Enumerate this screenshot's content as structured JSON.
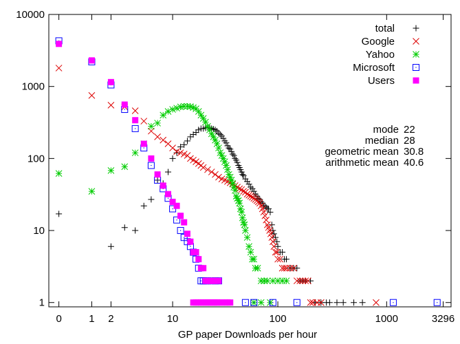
{
  "chart_data": {
    "type": "scatter",
    "xlabel": "GP paper Downloads per hour",
    "ylabel": "",
    "title": "",
    "x_scale": "log1p",
    "y_scale": "log",
    "xlim": [
      0,
      3296
    ],
    "ylim": [
      1,
      10000
    ],
    "x_ticks": [
      {
        "value": 0,
        "label": "0"
      },
      {
        "value": 1,
        "label": "1"
      },
      {
        "value": 2,
        "label": "2"
      },
      {
        "value": 10,
        "label": "10"
      },
      {
        "value": 100,
        "label": "100"
      },
      {
        "value": 1000,
        "label": "1000"
      },
      {
        "value": 3296,
        "label": "3296"
      }
    ],
    "y_ticks": [
      {
        "value": 1,
        "label": "1"
      },
      {
        "value": 10,
        "label": "10"
      },
      {
        "value": 100,
        "label": "100"
      },
      {
        "value": 1000,
        "label": "1000"
      },
      {
        "value": 10000,
        "label": "10000"
      }
    ],
    "legend_position": "top-right",
    "stats_box": [
      {
        "label": "mode",
        "value": "22"
      },
      {
        "label": "median",
        "value": "28"
      },
      {
        "label": "geometric mean",
        "value": "30.8"
      },
      {
        "label": "arithmetic mean",
        "value": "40.6"
      }
    ],
    "series": [
      {
        "name": "total",
        "marker": "plus",
        "color": "#000000",
        "points": [
          [
            0,
            17
          ],
          [
            2,
            6
          ],
          [
            3,
            11
          ],
          [
            4,
            10
          ],
          [
            5,
            22
          ],
          [
            6,
            27
          ],
          [
            7,
            50
          ],
          [
            8,
            45
          ],
          [
            9,
            65
          ],
          [
            10,
            100
          ],
          [
            11,
            120
          ],
          [
            12,
            145
          ],
          [
            13,
            155
          ],
          [
            14,
            175
          ],
          [
            15,
            200
          ],
          [
            16,
            215
          ],
          [
            17,
            230
          ],
          [
            18,
            250
          ],
          [
            19,
            260
          ],
          [
            20,
            260
          ],
          [
            21,
            265
          ],
          [
            22,
            270
          ],
          [
            23,
            265
          ],
          [
            24,
            260
          ],
          [
            25,
            255
          ],
          [
            26,
            250
          ],
          [
            27,
            240
          ],
          [
            28,
            225
          ],
          [
            29,
            215
          ],
          [
            30,
            205
          ],
          [
            31,
            190
          ],
          [
            32,
            175
          ],
          [
            33,
            165
          ],
          [
            34,
            150
          ],
          [
            35,
            140
          ],
          [
            36,
            135
          ],
          [
            37,
            125
          ],
          [
            38,
            115
          ],
          [
            39,
            110
          ],
          [
            40,
            100
          ],
          [
            41,
            95
          ],
          [
            42,
            88
          ],
          [
            43,
            80
          ],
          [
            44,
            75
          ],
          [
            45,
            70
          ],
          [
            46,
            65
          ],
          [
            47,
            60
          ],
          [
            48,
            58
          ],
          [
            50,
            52
          ],
          [
            52,
            48
          ],
          [
            54,
            44
          ],
          [
            56,
            40
          ],
          [
            58,
            38
          ],
          [
            60,
            35
          ],
          [
            62,
            32
          ],
          [
            64,
            30
          ],
          [
            66,
            28
          ],
          [
            68,
            27
          ],
          [
            70,
            25
          ],
          [
            72,
            24
          ],
          [
            74,
            22
          ],
          [
            76,
            22
          ],
          [
            78,
            21
          ],
          [
            80,
            20
          ],
          [
            82,
            20
          ],
          [
            85,
            18
          ],
          [
            88,
            12
          ],
          [
            90,
            10
          ],
          [
            92,
            9
          ],
          [
            95,
            8
          ],
          [
            98,
            7
          ],
          [
            100,
            6
          ],
          [
            105,
            5
          ],
          [
            110,
            5
          ],
          [
            115,
            4
          ],
          [
            120,
            4
          ],
          [
            130,
            3
          ],
          [
            140,
            3
          ],
          [
            150,
            3
          ],
          [
            160,
            2
          ],
          [
            170,
            2
          ],
          [
            180,
            2
          ],
          [
            200,
            2
          ],
          [
            220,
            1
          ],
          [
            250,
            1
          ],
          [
            280,
            1
          ],
          [
            300,
            1
          ],
          [
            350,
            1
          ],
          [
            400,
            1
          ],
          [
            500,
            1
          ],
          [
            600,
            1
          ]
        ]
      },
      {
        "name": "Google",
        "marker": "x",
        "color": "#dd0000",
        "points": [
          [
            0,
            1800
          ],
          [
            1,
            750
          ],
          [
            2,
            550
          ],
          [
            3,
            520
          ],
          [
            4,
            460
          ],
          [
            5,
            330
          ],
          [
            6,
            240
          ],
          [
            7,
            200
          ],
          [
            8,
            180
          ],
          [
            9,
            160
          ],
          [
            10,
            140
          ],
          [
            11,
            125
          ],
          [
            12,
            120
          ],
          [
            13,
            115
          ],
          [
            14,
            110
          ],
          [
            15,
            100
          ],
          [
            16,
            95
          ],
          [
            17,
            90
          ],
          [
            18,
            85
          ],
          [
            19,
            80
          ],
          [
            20,
            75
          ],
          [
            22,
            70
          ],
          [
            24,
            65
          ],
          [
            26,
            60
          ],
          [
            28,
            55
          ],
          [
            30,
            52
          ],
          [
            32,
            50
          ],
          [
            34,
            48
          ],
          [
            36,
            46
          ],
          [
            38,
            44
          ],
          [
            40,
            42
          ],
          [
            42,
            40
          ],
          [
            44,
            38
          ],
          [
            46,
            37
          ],
          [
            48,
            35
          ],
          [
            50,
            34
          ],
          [
            52,
            32
          ],
          [
            54,
            31
          ],
          [
            56,
            30
          ],
          [
            58,
            29
          ],
          [
            60,
            28
          ],
          [
            62,
            27
          ],
          [
            64,
            26
          ],
          [
            66,
            25
          ],
          [
            68,
            24
          ],
          [
            70,
            22
          ],
          [
            72,
            20
          ],
          [
            74,
            18
          ],
          [
            76,
            16
          ],
          [
            78,
            14
          ],
          [
            80,
            12
          ],
          [
            82,
            11
          ],
          [
            84,
            10
          ],
          [
            86,
            9
          ],
          [
            88,
            8
          ],
          [
            90,
            7
          ],
          [
            92,
            6
          ],
          [
            95,
            5
          ],
          [
            98,
            5
          ],
          [
            100,
            4
          ],
          [
            105,
            4
          ],
          [
            110,
            3
          ],
          [
            115,
            3
          ],
          [
            120,
            3
          ],
          [
            130,
            3
          ],
          [
            140,
            3
          ],
          [
            150,
            2
          ],
          [
            160,
            2
          ],
          [
            170,
            2
          ],
          [
            180,
            2
          ],
          [
            190,
            2
          ],
          [
            200,
            1
          ],
          [
            210,
            1
          ],
          [
            230,
            1
          ],
          [
            250,
            1
          ],
          [
            800,
            1
          ]
        ]
      },
      {
        "name": "Yahoo",
        "marker": "star",
        "color": "#00cc00",
        "points": [
          [
            0,
            62
          ],
          [
            1,
            35
          ],
          [
            2,
            68
          ],
          [
            3,
            77
          ],
          [
            4,
            120
          ],
          [
            5,
            160
          ],
          [
            6,
            280
          ],
          [
            7,
            310
          ],
          [
            8,
            400
          ],
          [
            9,
            450
          ],
          [
            10,
            480
          ],
          [
            11,
            500
          ],
          [
            12,
            520
          ],
          [
            13,
            530
          ],
          [
            14,
            530
          ],
          [
            15,
            525
          ],
          [
            16,
            510
          ],
          [
            17,
            490
          ],
          [
            18,
            450
          ],
          [
            19,
            400
          ],
          [
            20,
            360
          ],
          [
            21,
            320
          ],
          [
            22,
            280
          ],
          [
            23,
            250
          ],
          [
            24,
            220
          ],
          [
            25,
            200
          ],
          [
            26,
            180
          ],
          [
            27,
            160
          ],
          [
            28,
            140
          ],
          [
            29,
            120
          ],
          [
            30,
            110
          ],
          [
            31,
            100
          ],
          [
            32,
            90
          ],
          [
            33,
            80
          ],
          [
            34,
            70
          ],
          [
            35,
            60
          ],
          [
            36,
            55
          ],
          [
            37,
            50
          ],
          [
            38,
            45
          ],
          [
            39,
            40
          ],
          [
            40,
            36
          ],
          [
            41,
            30
          ],
          [
            42,
            28
          ],
          [
            43,
            26
          ],
          [
            44,
            24
          ],
          [
            45,
            20
          ],
          [
            46,
            18
          ],
          [
            47,
            15
          ],
          [
            48,
            13
          ],
          [
            49,
            12
          ],
          [
            50,
            10
          ],
          [
            52,
            8
          ],
          [
            54,
            6
          ],
          [
            56,
            5
          ],
          [
            58,
            4
          ],
          [
            60,
            4
          ],
          [
            62,
            3
          ],
          [
            65,
            3
          ],
          [
            70,
            2
          ],
          [
            75,
            2
          ],
          [
            80,
            2
          ],
          [
            90,
            2
          ],
          [
            100,
            2
          ],
          [
            110,
            2
          ],
          [
            120,
            2
          ],
          [
            60,
            1
          ],
          [
            70,
            1
          ],
          [
            85,
            1
          ]
        ]
      },
      {
        "name": "Microsoft",
        "marker": "box",
        "color": "#0000ff",
        "points": [
          [
            0,
            4300
          ],
          [
            1,
            2200
          ],
          [
            2,
            1050
          ],
          [
            3,
            480
          ],
          [
            4,
            260
          ],
          [
            5,
            140
          ],
          [
            6,
            80
          ],
          [
            7,
            50
          ],
          [
            8,
            38
          ],
          [
            9,
            28
          ],
          [
            10,
            20
          ],
          [
            11,
            14
          ],
          [
            12,
            10
          ],
          [
            13,
            8
          ],
          [
            14,
            7
          ],
          [
            15,
            6
          ],
          [
            16,
            5
          ],
          [
            17,
            4
          ],
          [
            18,
            3
          ],
          [
            19,
            2
          ],
          [
            20,
            2
          ],
          [
            21,
            2
          ],
          [
            22,
            2
          ],
          [
            24,
            2
          ],
          [
            26,
            2
          ],
          [
            28,
            2
          ],
          [
            50,
            1
          ],
          [
            60,
            1
          ],
          [
            90,
            1
          ],
          [
            150,
            1
          ],
          [
            1150,
            1
          ],
          [
            2900,
            1
          ]
        ]
      },
      {
        "name": "Users",
        "marker": "filled_box",
        "color": "#ff00ff",
        "points": [
          [
            0,
            3900
          ],
          [
            1,
            2300
          ],
          [
            2,
            1150
          ],
          [
            3,
            560
          ],
          [
            4,
            340
          ],
          [
            5,
            160
          ],
          [
            6,
            100
          ],
          [
            7,
            60
          ],
          [
            8,
            42
          ],
          [
            9,
            32
          ],
          [
            10,
            25
          ],
          [
            11,
            22
          ],
          [
            12,
            16
          ],
          [
            13,
            13
          ],
          [
            14,
            9
          ],
          [
            15,
            7
          ],
          [
            16,
            5
          ],
          [
            17,
            5
          ],
          [
            18,
            4
          ],
          [
            19,
            3
          ],
          [
            20,
            3
          ],
          [
            21,
            2
          ],
          [
            22,
            2
          ],
          [
            23,
            2
          ],
          [
            24,
            2
          ],
          [
            25,
            2
          ],
          [
            26,
            2
          ],
          [
            28,
            2
          ],
          [
            16,
            1
          ],
          [
            17,
            1
          ],
          [
            18,
            1
          ],
          [
            19,
            1
          ],
          [
            20,
            1
          ],
          [
            21,
            1
          ],
          [
            22,
            1
          ],
          [
            23,
            1
          ],
          [
            24,
            1
          ],
          [
            25,
            1
          ],
          [
            26,
            1
          ],
          [
            27,
            1
          ],
          [
            28,
            1
          ],
          [
            30,
            1
          ],
          [
            32,
            1
          ],
          [
            34,
            1
          ],
          [
            36,
            1
          ]
        ]
      }
    ]
  }
}
